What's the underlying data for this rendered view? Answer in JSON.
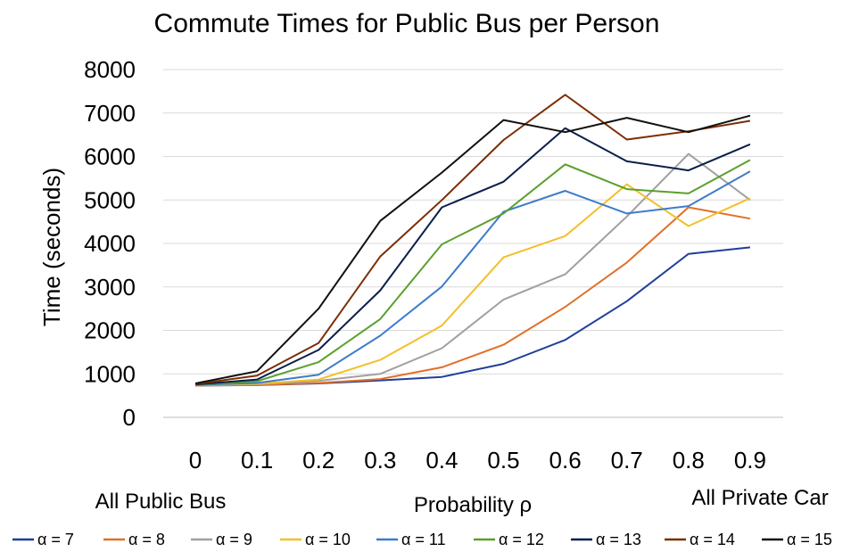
{
  "chart_data": {
    "type": "line",
    "title": "Commute Times for Public Bus per Person",
    "xlabel": "Probability ρ",
    "ylabel": "Time (seconds)",
    "x_end_labels": {
      "left": "All Public Bus",
      "right": "All Private Car"
    },
    "x": [
      0,
      0.1,
      0.2,
      0.3,
      0.4,
      0.5,
      0.6,
      0.7,
      0.8,
      0.9
    ],
    "x_tick_labels": [
      "0",
      "0.1",
      "0.2",
      "0.3",
      "0.4",
      "0.5",
      "0.6",
      "0.7",
      "0.8",
      "0.9"
    ],
    "ylim": [
      0,
      8000
    ],
    "y_ticks": [
      0,
      1000,
      2000,
      3000,
      4000,
      5000,
      6000,
      7000,
      8000
    ],
    "y_tick_labels": [
      "0",
      "1000",
      "2000",
      "3000",
      "4000",
      "5000",
      "6000",
      "7000",
      "8000"
    ],
    "grid": true,
    "legend_position": "bottom",
    "series": [
      {
        "name": "α = 7",
        "color": "#1f3f99",
        "values": [
          730,
          740,
          780,
          850,
          930,
          1230,
          1780,
          2670,
          3760,
          3910
        ]
      },
      {
        "name": "α = 8",
        "color": "#e07028",
        "values": [
          730,
          745,
          790,
          880,
          1150,
          1670,
          2540,
          3560,
          4830,
          4570
        ]
      },
      {
        "name": "α = 9",
        "color": "#a0a0a0",
        "values": [
          735,
          760,
          840,
          1000,
          1590,
          2710,
          3290,
          4620,
          6060,
          5000
        ]
      },
      {
        "name": "α = 10",
        "color": "#f4bf2a",
        "values": [
          740,
          770,
          870,
          1320,
          2110,
          3680,
          4170,
          5360,
          4400,
          5040
        ]
      },
      {
        "name": "α = 11",
        "color": "#3d7cc9",
        "values": [
          745,
          790,
          980,
          1880,
          3010,
          4730,
          5210,
          4690,
          4860,
          5660
        ]
      },
      {
        "name": "α = 12",
        "color": "#5aa02c",
        "values": [
          750,
          830,
          1270,
          2260,
          3980,
          4690,
          5820,
          5250,
          5150,
          5920
        ]
      },
      {
        "name": "α = 13",
        "color": "#0b1e4a",
        "values": [
          755,
          870,
          1550,
          2920,
          4830,
          5420,
          6650,
          5890,
          5680,
          6280
        ]
      },
      {
        "name": "α = 14",
        "color": "#7a2e05",
        "values": [
          765,
          960,
          1710,
          3700,
          5000,
          6380,
          7420,
          6390,
          6580,
          6820
        ]
      },
      {
        "name": "α = 15",
        "color": "#111111",
        "values": [
          780,
          1060,
          2500,
          4520,
          5630,
          6840,
          6560,
          6890,
          6560,
          6940
        ]
      }
    ]
  }
}
